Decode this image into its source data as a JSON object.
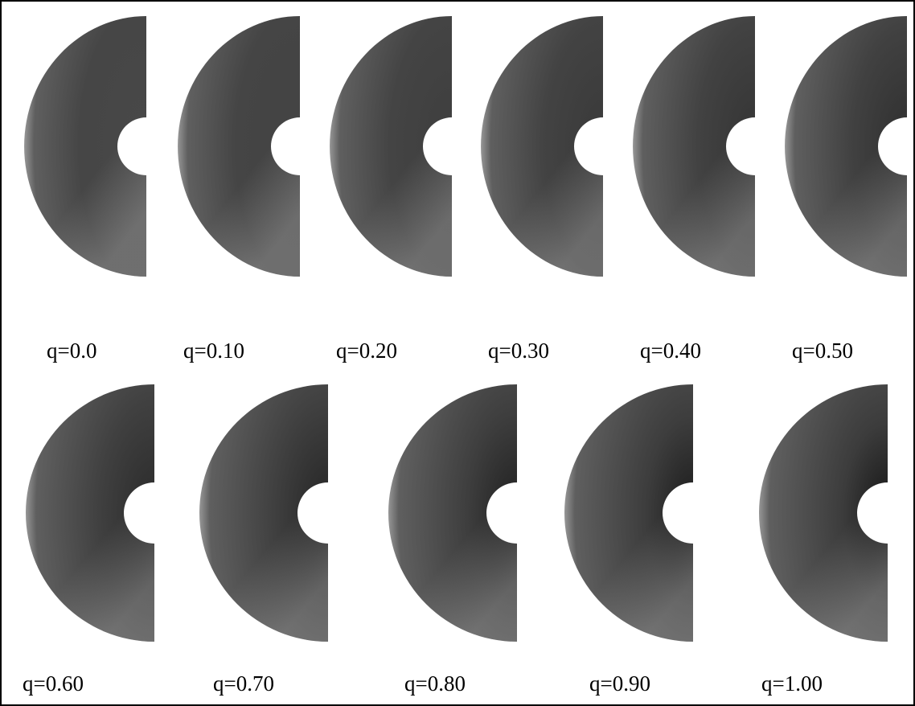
{
  "panels": [
    {
      "label": "q=0.0"
    },
    {
      "label": "q=0.10"
    },
    {
      "label": "q=0.20"
    },
    {
      "label": "q=0.30"
    },
    {
      "label": "q=0.40"
    },
    {
      "label": "q=0.50"
    },
    {
      "label": "q=0.60"
    },
    {
      "label": "q=0.70"
    },
    {
      "label": "q=0.80"
    },
    {
      "label": "q=0.90"
    },
    {
      "label": "q=1.00"
    }
  ]
}
